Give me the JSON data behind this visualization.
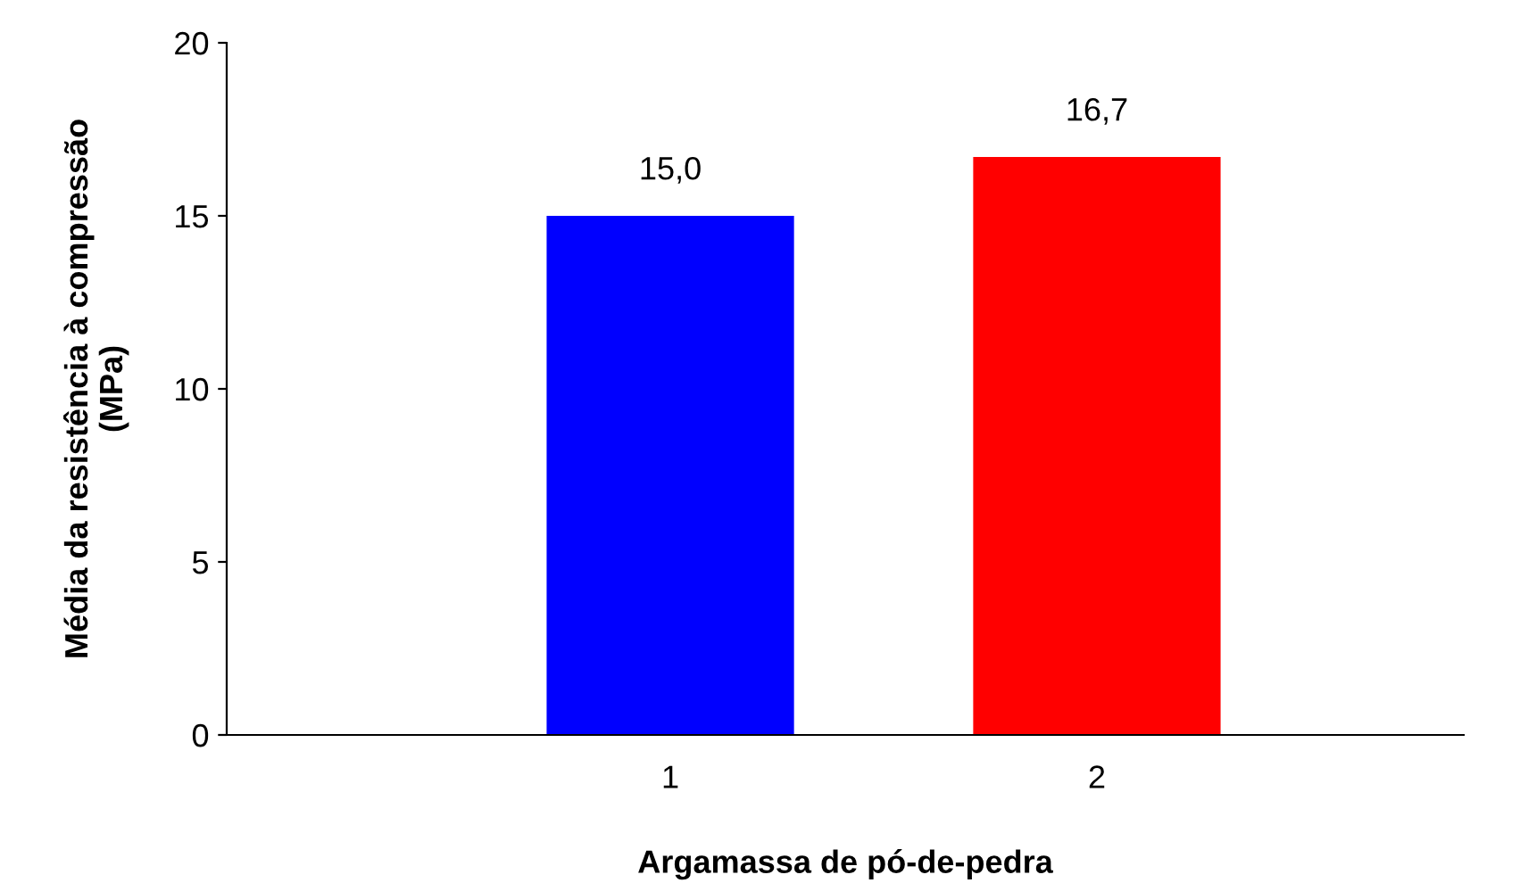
{
  "chart_data": {
    "type": "bar",
    "xlabel": "Argamassa de pó-de-pedra",
    "ylabel": "Média da resistência à compressão\n(MPa)",
    "categories": [
      "1",
      "2"
    ],
    "values": [
      15.0,
      16.7
    ],
    "colors": [
      "#0000ff",
      "#ff0000"
    ],
    "value_labels": [
      "15,0",
      "16,7"
    ],
    "ylim": [
      0,
      20
    ],
    "yticks": [
      0,
      5,
      10,
      15,
      20
    ],
    "grid": false,
    "legend": false
  }
}
